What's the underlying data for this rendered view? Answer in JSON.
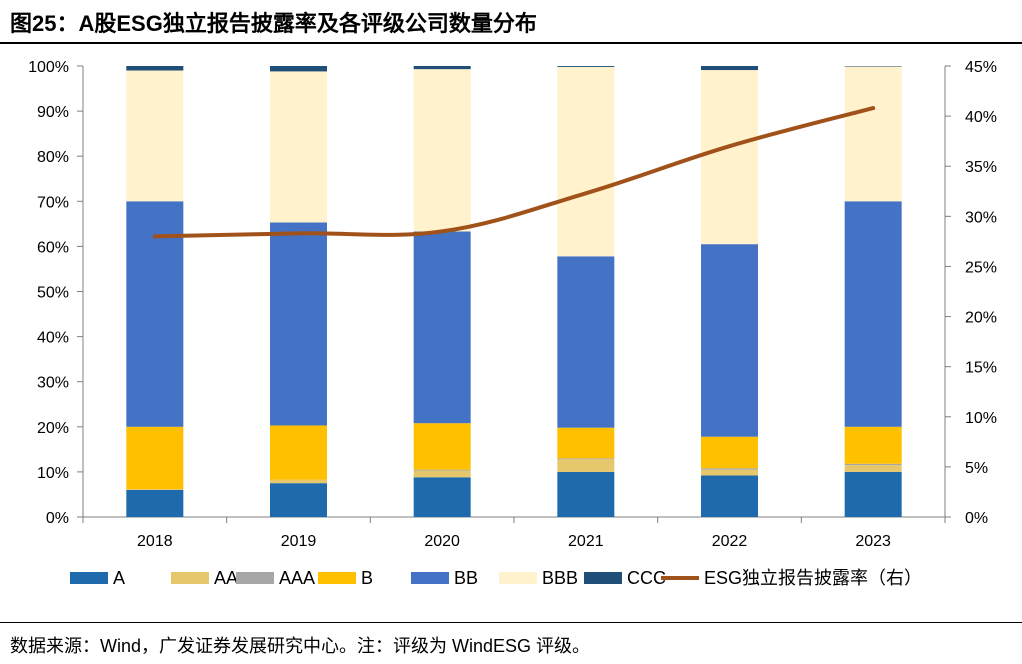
{
  "title": "图25：A股ESG独立报告披露率及各评级公司数量分布",
  "source": "数据来源：Wind，广发证券发展研究中心。注：评级为 WindESG 评级。",
  "chart_data": {
    "type": "bar",
    "stacked": true,
    "categories": [
      "2018",
      "2019",
      "2020",
      "2021",
      "2022",
      "2023"
    ],
    "y_left": {
      "min": 0,
      "max": 100,
      "step": 10,
      "ticks": [
        "0%",
        "10%",
        "20%",
        "30%",
        "40%",
        "50%",
        "60%",
        "70%",
        "80%",
        "90%",
        "100%"
      ]
    },
    "y_right": {
      "min": 0,
      "max": 45,
      "step": 5,
      "ticks": [
        "0%",
        "5%",
        "10%",
        "15%",
        "20%",
        "25%",
        "30%",
        "35%",
        "40%",
        "45%"
      ]
    },
    "series": [
      {
        "name": "A",
        "color": "#1f6aad",
        "values": [
          6.0,
          7.5,
          8.8,
          10.0,
          9.2,
          10.0
        ]
      },
      {
        "name": "AA",
        "color": "#e6c76b",
        "values": [
          0.2,
          0.8,
          1.5,
          2.8,
          1.3,
          1.5
        ]
      },
      {
        "name": "AAA",
        "color": "#a6a6a6",
        "values": [
          0.0,
          0.0,
          0.2,
          0.2,
          0.3,
          0.3
        ]
      },
      {
        "name": "B",
        "color": "#ffc000",
        "values": [
          13.8,
          12.0,
          10.3,
          6.8,
          7.0,
          8.2
        ]
      },
      {
        "name": "BB",
        "color": "#4472c4",
        "values": [
          50.0,
          45.0,
          42.5,
          38.0,
          42.7,
          50.0
        ]
      },
      {
        "name": "BBB",
        "color": "#fff2cc",
        "values": [
          29.0,
          33.5,
          36.0,
          42.0,
          38.6,
          29.9
        ]
      },
      {
        "name": "CCC",
        "color": "#1f4e79",
        "values": [
          1.0,
          1.2,
          0.7,
          0.2,
          0.9,
          0.1
        ]
      }
    ],
    "line": {
      "name": "ESG独立报告披露率（右）",
      "color": "#a0521a",
      "values": [
        28.0,
        28.3,
        28.5,
        32.3,
        37.0,
        40.8
      ]
    }
  }
}
